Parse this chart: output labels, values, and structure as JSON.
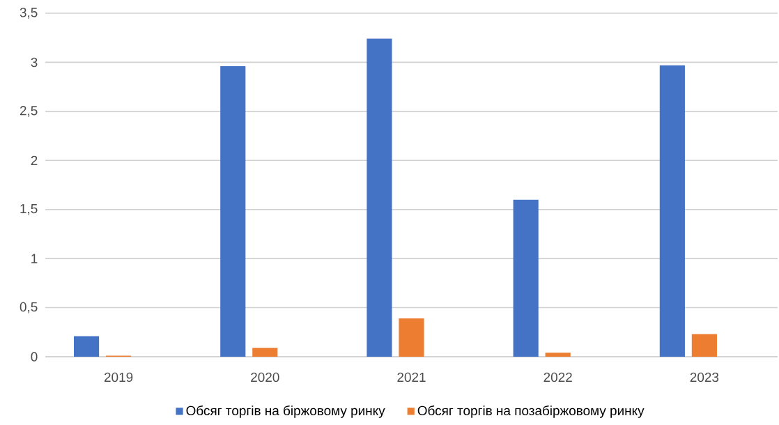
{
  "chart_data": {
    "type": "bar",
    "categories": [
      "2019",
      "2020",
      "2021",
      "2022",
      "2023"
    ],
    "series": [
      {
        "name": "Обсяг торгів на біржовому ринку",
        "color": "#4472c4",
        "values": [
          0.21,
          2.96,
          3.24,
          1.6,
          2.97
        ]
      },
      {
        "name": "Обсяг торгів на позабіржовому ринку",
        "color": "#ed7d31",
        "values": [
          0.01,
          0.09,
          0.39,
          0.04,
          0.23
        ]
      }
    ],
    "ylim": [
      0,
      3.5
    ],
    "yticks": [
      0,
      {
        "value": 0.5,
        "label": "0,5"
      },
      1,
      {
        "value": 1.5,
        "label": "1,5"
      },
      2,
      {
        "value": 2.5,
        "label": "2,5"
      },
      3,
      {
        "value": 3.5,
        "label": "3,5"
      }
    ],
    "grid": "y",
    "legend": "bottom"
  }
}
